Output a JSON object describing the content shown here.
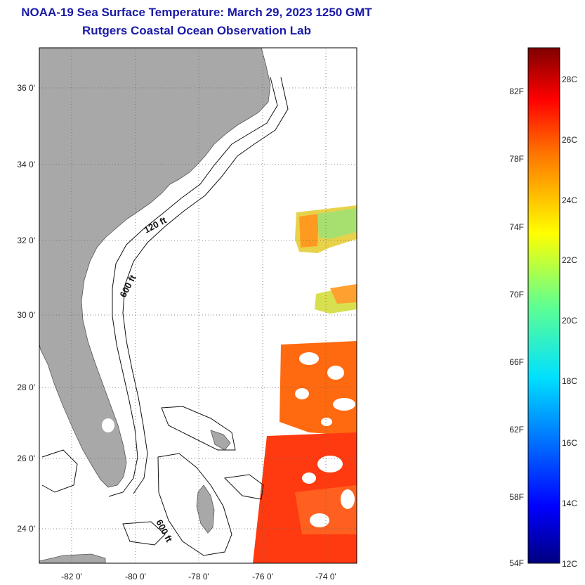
{
  "header": {
    "title": "NOAA-19 Sea Surface Temperature:  March 29, 2023 1250 GMT",
    "subtitle": "Rutgers Coastal Ocean Observation Lab"
  },
  "map": {
    "lon_ticks": [
      "-82 0'",
      "-80 0'",
      "-78 0'",
      "-76 0'",
      "-74 0'"
    ],
    "lat_ticks": [
      "36 0'",
      "34 0'",
      "32 0'",
      "30 0'",
      "28 0'",
      "26 0'",
      "24 0'"
    ],
    "contour_labels": [
      "120 ft",
      "600 ft",
      "600 ft"
    ]
  },
  "colorbar": {
    "fahrenheit_labels": [
      "82F",
      "78F",
      "74F",
      "70F",
      "66F",
      "62F",
      "58F",
      "54F"
    ],
    "celsius_labels": [
      "28C",
      "26C",
      "24C",
      "22C",
      "20C",
      "18C",
      "16C",
      "14C",
      "12C"
    ]
  },
  "colors": {
    "land": "#a8a8a8",
    "title": "#1a1aa8"
  }
}
